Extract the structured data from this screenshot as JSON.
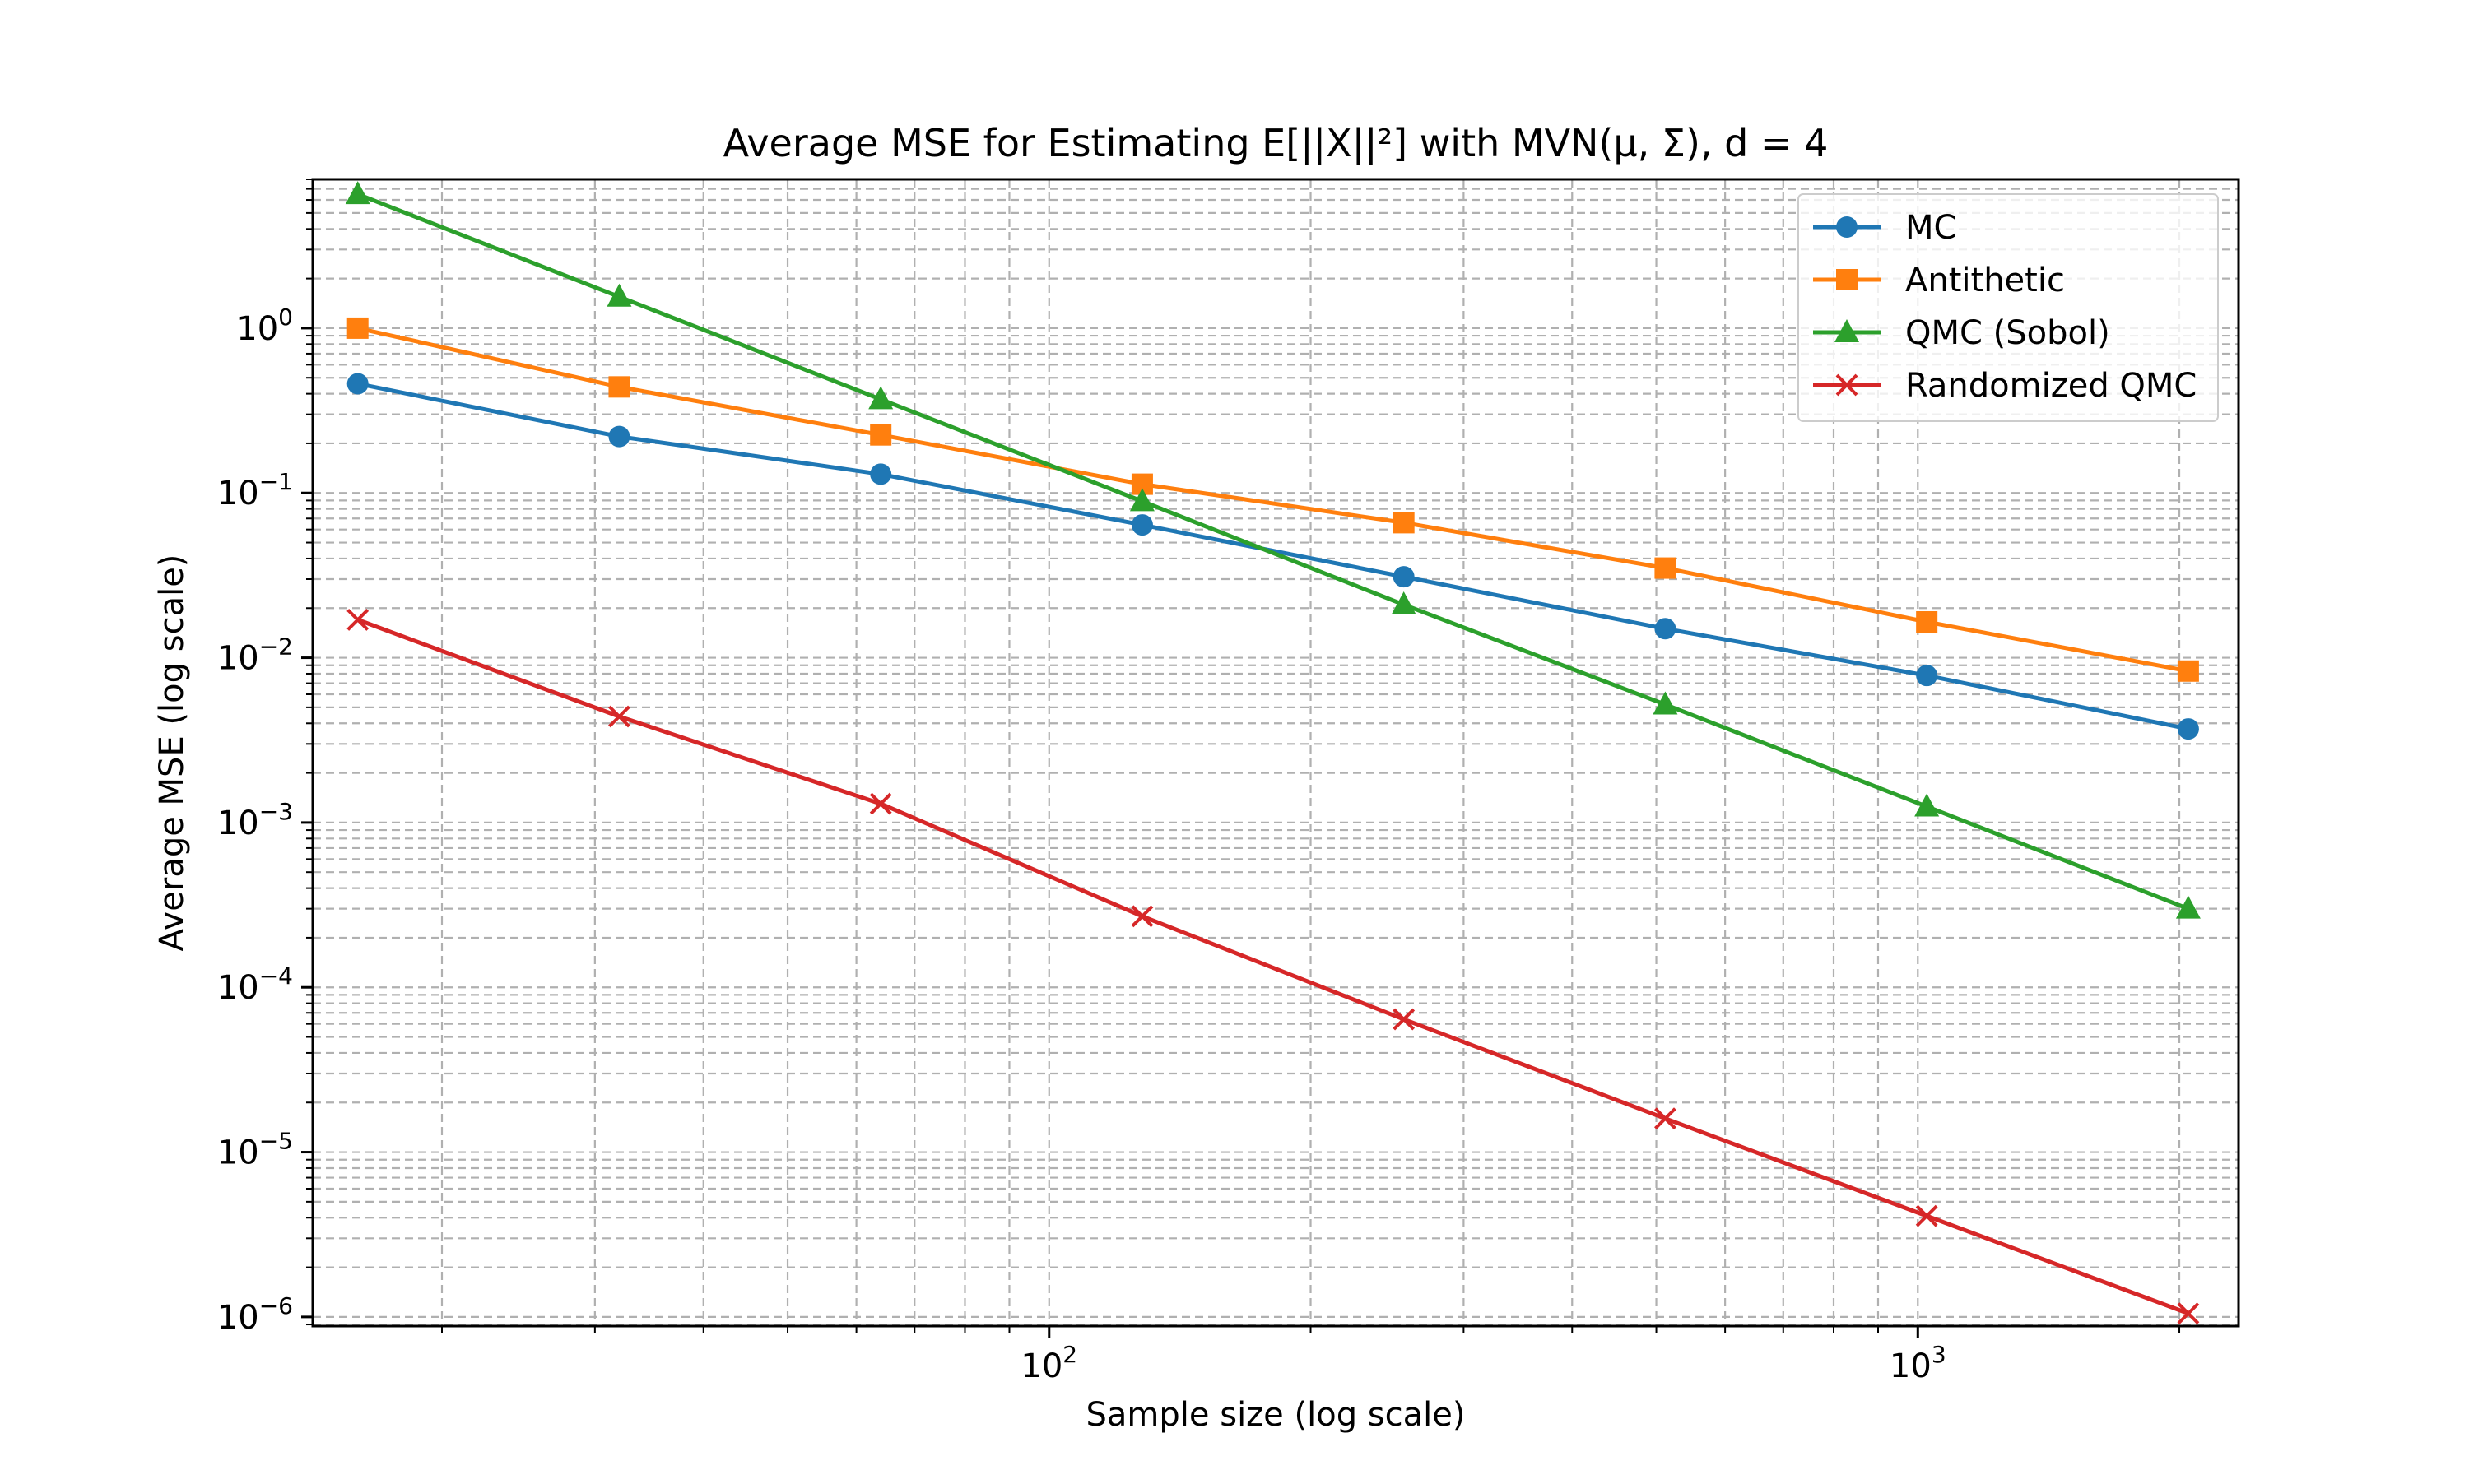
{
  "chart_data": {
    "type": "line",
    "title": "Average MSE for Estimating E[||X||²] with MVN(μ, Σ), d = 4",
    "xlabel": "Sample size (log scale)",
    "ylabel": "Average MSE (log scale)",
    "xscale": "log",
    "yscale": "log",
    "xlim": [
      14.2,
      2340
    ],
    "ylim": [
      8.8e-07,
      8.0
    ],
    "grid": "both major and minor, dashed",
    "legend_position": "top-right",
    "x_ticks": [
      {
        "value": 100,
        "label": "10",
        "exp": "2"
      },
      {
        "value": 1000,
        "label": "10",
        "exp": "3"
      }
    ],
    "y_ticks": [
      {
        "value": 1,
        "label": "10",
        "exp": "0"
      },
      {
        "value": 0.1,
        "label": "10",
        "exp": "−1"
      },
      {
        "value": 0.01,
        "label": "10",
        "exp": "−2"
      },
      {
        "value": 0.001,
        "label": "10",
        "exp": "−3"
      },
      {
        "value": 0.0001,
        "label": "10",
        "exp": "−4"
      },
      {
        "value": 1e-05,
        "label": "10",
        "exp": "−5"
      },
      {
        "value": 1e-06,
        "label": "10",
        "exp": "−6"
      }
    ],
    "x": [
      16,
      32,
      64,
      128,
      256,
      512,
      1024,
      2048
    ],
    "series": [
      {
        "name": "MC",
        "color": "#1f77b4",
        "marker": "circle",
        "values": [
          0.46,
          0.22,
          0.13,
          0.064,
          0.031,
          0.015,
          0.0078,
          0.0037
        ]
      },
      {
        "name": "Antithetic",
        "color": "#ff7f0e",
        "marker": "square",
        "values": [
          1.0,
          0.44,
          0.225,
          0.113,
          0.066,
          0.035,
          0.0165,
          0.0083
        ]
      },
      {
        "name": "QMC (Sobol)",
        "color": "#2ca02c",
        "marker": "triangle",
        "values": [
          6.5,
          1.55,
          0.37,
          0.089,
          0.021,
          0.0052,
          0.00125,
          0.0003
        ]
      },
      {
        "name": "Randomized QMC",
        "color": "#d62728",
        "marker": "x",
        "values": [
          0.017,
          0.0044,
          0.0013,
          0.00027,
          6.4e-05,
          1.6e-05,
          4.1e-06,
          1.05e-06
        ]
      }
    ]
  }
}
